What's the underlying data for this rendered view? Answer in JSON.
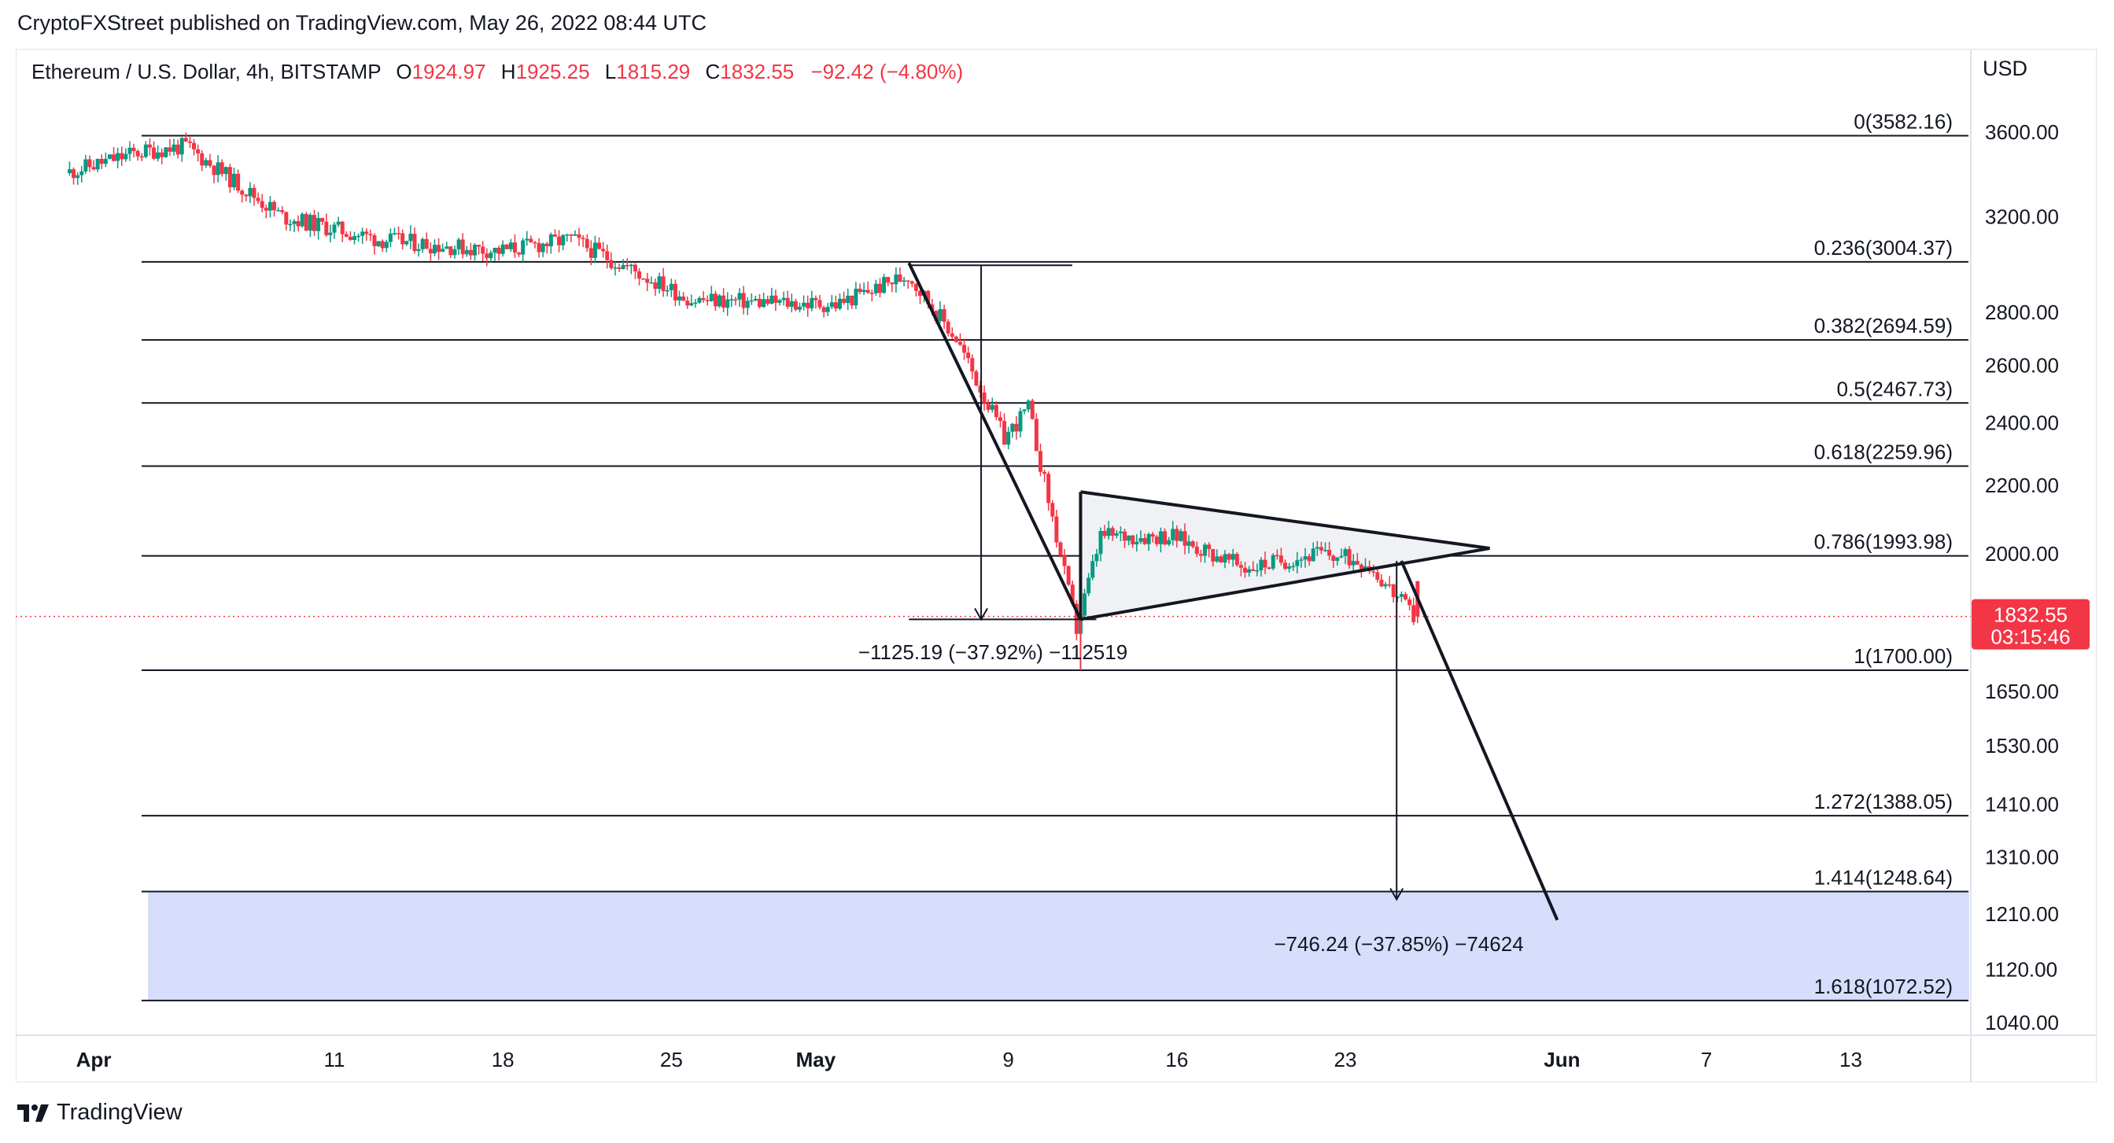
{
  "header": {
    "published_text": "CryptoFXStreet published on TradingView.com, May 26, 2022 08:44 UTC"
  },
  "legend": {
    "symbol": "Ethereum / U.S. Dollar, 4h, BITSTAMP",
    "open_label": "O",
    "open": "1924.97",
    "high_label": "H",
    "high": "1925.25",
    "low_label": "L",
    "low": "1815.29",
    "close_label": "C",
    "close": "1832.55",
    "change": "−92.42 (−4.80%)"
  },
  "price_axis": {
    "currency": "USD",
    "ticks": [
      "3600.00",
      "3200.00",
      "2800.00",
      "2600.00",
      "2400.00",
      "2200.00",
      "2000.00",
      "1650.00",
      "1530.00",
      "1410.00",
      "1310.00",
      "1210.00",
      "1120.00",
      "1040.00"
    ]
  },
  "last_price": {
    "price": "1832.55",
    "countdown": "03:15:46"
  },
  "time_axis": {
    "labels": [
      {
        "text": "Apr",
        "bold": true
      },
      {
        "text": "11",
        "bold": false
      },
      {
        "text": "18",
        "bold": false
      },
      {
        "text": "25",
        "bold": false
      },
      {
        "text": "May",
        "bold": true
      },
      {
        "text": "9",
        "bold": false
      },
      {
        "text": "16",
        "bold": false
      },
      {
        "text": "23",
        "bold": false
      },
      {
        "text": "Jun",
        "bold": true
      },
      {
        "text": "7",
        "bold": false
      },
      {
        "text": "13",
        "bold": false
      }
    ]
  },
  "fib_levels": [
    {
      "label": "0(3582.16)",
      "price": 3582.16
    },
    {
      "label": "0.236(3004.37)",
      "price": 3004.37
    },
    {
      "label": "0.382(2694.59)",
      "price": 2694.59
    },
    {
      "label": "0.5(2467.73)",
      "price": 2467.73
    },
    {
      "label": "0.618(2259.96)",
      "price": 2259.96
    },
    {
      "label": "0.786(1993.98)",
      "price": 1993.98
    },
    {
      "label": "1(1700.00)",
      "price": 1700.0
    },
    {
      "label": "1.272(1388.05)",
      "price": 1388.05
    },
    {
      "label": "1.414(1248.64)",
      "price": 1248.64
    },
    {
      "label": "1.618(1072.52)",
      "price": 1072.52
    }
  ],
  "annotations": {
    "measure_1": "−1125.19 (−37.92%) −112519",
    "measure_2": "−746.24 (−37.85%) −74624"
  },
  "colors": {
    "up": "#089981",
    "down": "#f23645",
    "target_zone": "#d6defc",
    "triangle_fill": "#f0f1f4"
  },
  "footer": {
    "brand": "TradingView"
  },
  "chart_data": {
    "type": "candlestick",
    "title": "Ethereum / U.S. Dollar, 4h, BITSTAMP",
    "ylabel": "USD",
    "x_range": [
      "2022-03-31",
      "2022-06-14"
    ],
    "ylim": [
      1010,
      3720
    ],
    "scale": "log",
    "grid": false,
    "key_points": [
      {
        "x": "2022-03-31",
        "y": 3400
      },
      {
        "x": "2022-04-03",
        "y": 3500
      },
      {
        "x": "2022-04-05",
        "y": 3530
      },
      {
        "x": "2022-04-09",
        "y": 3200
      },
      {
        "x": "2022-04-13",
        "y": 3100
      },
      {
        "x": "2022-04-18",
        "y": 3050
      },
      {
        "x": "2022-04-21",
        "y": 3100
      },
      {
        "x": "2022-04-26",
        "y": 2850
      },
      {
        "x": "2022-05-02",
        "y": 2830
      },
      {
        "x": "2022-05-05",
        "y": 2950
      },
      {
        "x": "2022-05-07",
        "y": 2700
      },
      {
        "x": "2022-05-09",
        "y": 2350
      },
      {
        "x": "2022-05-10",
        "y": 2450
      },
      {
        "x": "2022-05-12",
        "y": 1800
      },
      {
        "x": "2022-05-13",
        "y": 2050
      },
      {
        "x": "2022-05-16",
        "y": 2050
      },
      {
        "x": "2022-05-19",
        "y": 1960
      },
      {
        "x": "2022-05-22",
        "y": 2000
      },
      {
        "x": "2022-05-24",
        "y": 1980
      },
      {
        "x": "2022-05-26",
        "y": 1832.55
      }
    ],
    "last_candle": {
      "open": 1924.97,
      "high": 1925.25,
      "low": 1815.29,
      "close": 1832.55
    }
  }
}
